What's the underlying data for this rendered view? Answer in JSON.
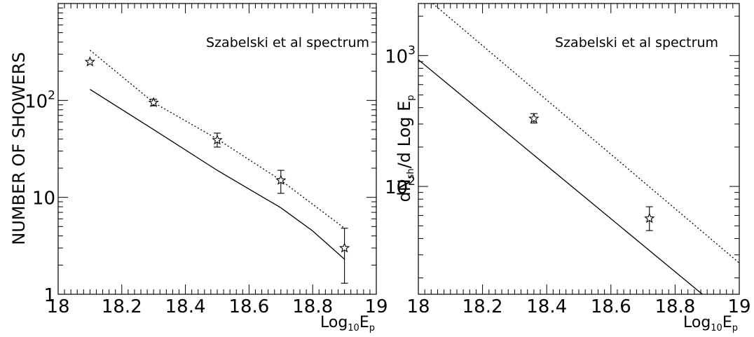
{
  "chart_data": [
    {
      "type": "line",
      "title": "",
      "annotation": "Szabelski et al spectrum",
      "ylabel": "NUMBER OF SHOWERS",
      "xlabel": {
        "main": "Log",
        "sub1": "10",
        "mid": "E",
        "sub2": "p"
      },
      "yscale": "log",
      "xlim": [
        18,
        19
      ],
      "ylim": [
        1,
        1000
      ],
      "x_ticks": [
        "18",
        "18.2",
        "18.4",
        "18.6",
        "18.8",
        "19"
      ],
      "y_ticks": [
        {
          "value": 1,
          "base": "1",
          "exp": ""
        },
        {
          "value": 10,
          "base": "10",
          "exp": ""
        },
        {
          "value": 100,
          "base": "10",
          "exp": "2"
        }
      ],
      "series": [
        {
          "style": "solid",
          "x": [
            18.1,
            18.3,
            18.5,
            18.7,
            18.8,
            18.9
          ],
          "y": [
            130,
            50,
            19,
            7.8,
            4.5,
            2.3
          ]
        },
        {
          "style": "dotted",
          "x": [
            18.1,
            18.3,
            18.5,
            18.7,
            18.9
          ],
          "y": [
            330,
            95,
            40,
            15,
            4.8
          ]
        }
      ],
      "points": [
        {
          "x": 18.1,
          "y": 250,
          "ylo": 250,
          "yhi": 250
        },
        {
          "x": 18.3,
          "y": 95,
          "ylo": 88,
          "yhi": 103
        },
        {
          "x": 18.5,
          "y": 39,
          "ylo": 33,
          "yhi": 46
        },
        {
          "x": 18.7,
          "y": 15,
          "ylo": 11,
          "yhi": 19
        },
        {
          "x": 18.9,
          "y": 3.0,
          "ylo": 1.3,
          "yhi": 4.8
        }
      ]
    },
    {
      "type": "line",
      "title": "",
      "annotation": "Szabelski et al spectrum",
      "ylabel": {
        "a": "dN",
        "asub": "sh",
        "b": "/d Log E",
        "bsub": "p"
      },
      "xlabel": {
        "main": "Log",
        "sub1": "10",
        "mid": "E",
        "sub2": "p"
      },
      "yscale": "log",
      "xlim": [
        18,
        19
      ],
      "ylim": [
        15,
        2500
      ],
      "x_ticks": [
        "18",
        "18.2",
        "18.4",
        "18.6",
        "18.8",
        "19"
      ],
      "y_ticks": [
        {
          "value": 100,
          "base": "10",
          "exp": "2"
        },
        {
          "value": 1000,
          "base": "10",
          "exp": "3"
        }
      ],
      "series": [
        {
          "style": "solid",
          "x": [
            18.0,
            18.885
          ],
          "y": [
            930,
            15
          ]
        },
        {
          "style": "dotted",
          "x": [
            18.045,
            19.0
          ],
          "y": [
            2500,
            26
          ]
        }
      ],
      "points": [
        {
          "x": 18.36,
          "y": 330,
          "ylo": 305,
          "yhi": 360
        },
        {
          "x": 18.72,
          "y": 57,
          "ylo": 46,
          "yhi": 70
        }
      ]
    }
  ]
}
